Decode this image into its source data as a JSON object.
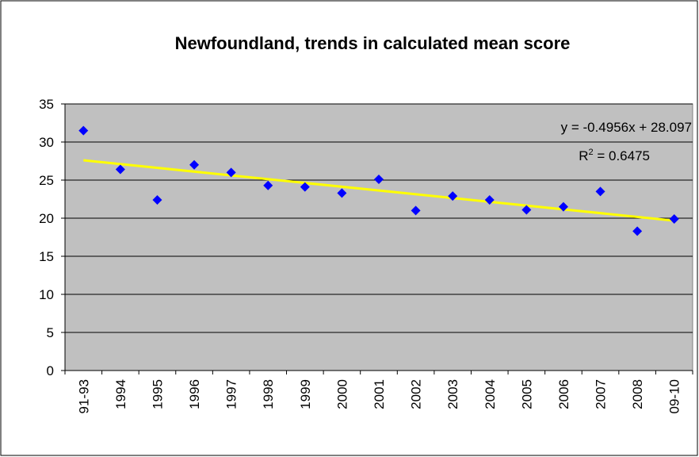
{
  "chart_data": {
    "type": "scatter",
    "title": "Newfoundland, trends in calculated mean score",
    "categories": [
      "91-93",
      "1994",
      "1995",
      "1996",
      "1997",
      "1998",
      "1999",
      "2000",
      "2001",
      "2002",
      "2003",
      "2004",
      "2005",
      "2006",
      "2007",
      "2008",
      "09-10"
    ],
    "values": [
      31.5,
      26.4,
      22.4,
      27.0,
      26.0,
      24.3,
      24.1,
      23.3,
      25.1,
      21.0,
      22.9,
      22.4,
      21.1,
      21.5,
      23.5,
      18.3,
      19.9
    ],
    "color": "#0000ff",
    "ylim": [
      0,
      35
    ],
    "yticks": [
      0,
      5,
      10,
      15,
      20,
      25,
      30,
      35
    ],
    "grid": true,
    "plot_background": "#c0c0c0",
    "trendline": {
      "slope": -0.4956,
      "intercept": 28.097,
      "color": "#ffff00",
      "equation_label": "y = -0.4956x + 28.097",
      "r2_label": {
        "base": "R",
        "sup": "2",
        "rest": " = 0.6475"
      }
    }
  }
}
